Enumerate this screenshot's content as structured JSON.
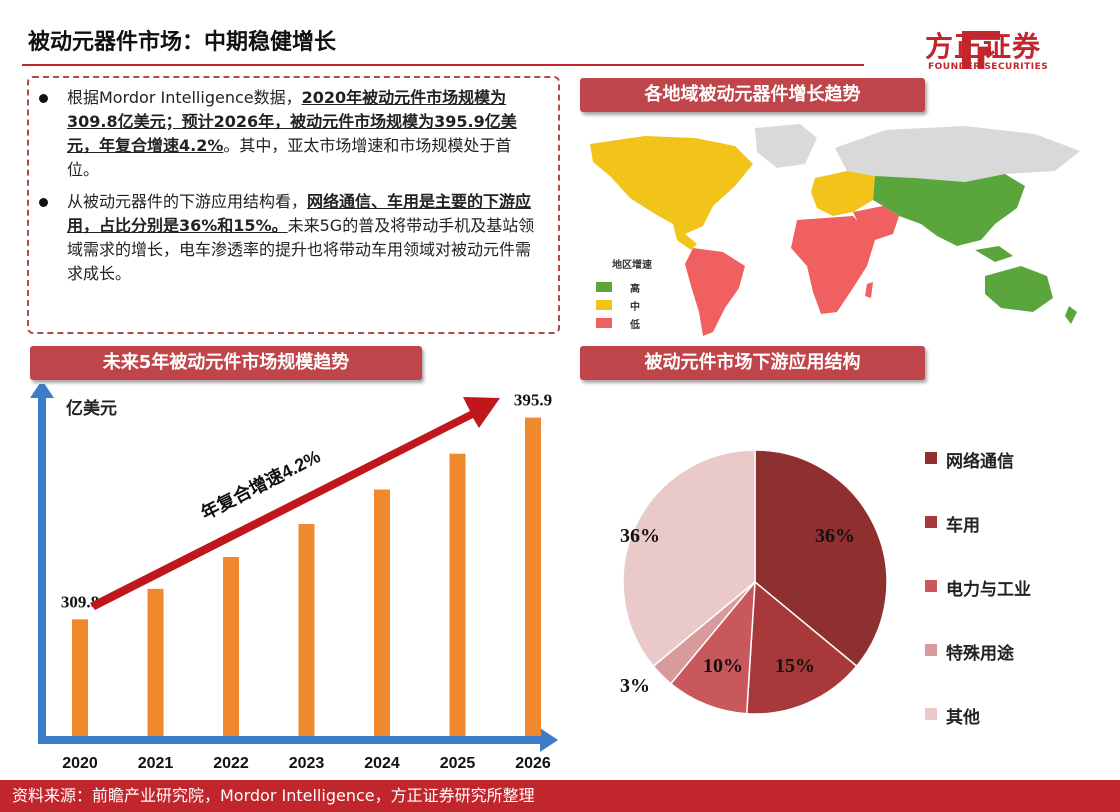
{
  "header": {
    "title": "被动元器件市场：中期稳健增长",
    "logo_text": "方正证券",
    "logo_sub": "FOUNDER SECURITIES"
  },
  "description": {
    "bullet1_part1": "根据Mordor Intelligence数据，",
    "bullet1_bold": "2020年被动元件市场规模为309.8亿美元；预计2026年，被动元件市场规模为395.9亿美元，年复合增速4.2%",
    "bullet1_part2": "。其中，亚太市场增速和市场规模处于首位。",
    "bullet2_part1": "从被动元器件的下游应用结构看，",
    "bullet2_bold": "网络通信、车用是主要的下游应用，占比分别是36%和15%。",
    "bullet2_part2": "未来5G的普及将带动手机及基站领域需求的增长，电车渗透率的提升也将带动车用领域对被动元件需求成长。"
  },
  "map_section": {
    "title": "各地域被动元器件增长趋势",
    "legend_title": "地区增速",
    "legend": [
      {
        "label": "高",
        "color": "#5aa63c"
      },
      {
        "label": "中",
        "color": "#f2c318"
      },
      {
        "label": "低",
        "color": "#f06060"
      }
    ]
  },
  "chart_data": [
    {
      "type": "bar",
      "title": "未来5年被动元件市场规模趋势",
      "ylabel": "亿美元",
      "categories": [
        "2020",
        "2021",
        "2022",
        "2023",
        "2024",
        "2025",
        "2026"
      ],
      "values": [
        309.8,
        322.8,
        336.4,
        350.5,
        365.2,
        380.5,
        395.9
      ],
      "data_labels": {
        "2020": "309.8",
        "2026": "395.9"
      },
      "annotation": "年复合增速4.2%",
      "bar_color": "#f0892e"
    },
    {
      "type": "pie",
      "title": "被动元件市场下游应用结构",
      "slices": [
        {
          "label": "网络通信",
          "value": 36,
          "text": "36%",
          "color": "#8e2f30"
        },
        {
          "label": "车用",
          "value": 15,
          "text": "15%",
          "color": "#a8393b"
        },
        {
          "label": "电力与工业",
          "value": 10,
          "text": "10%",
          "color": "#c9585c"
        },
        {
          "label": "特殊用途",
          "value": 3,
          "text": "3%",
          "color": "#d99a9c"
        },
        {
          "label": "其他",
          "value": 36,
          "text": "36%",
          "color": "#e9c9ca"
        }
      ]
    }
  ],
  "footer": {
    "source": "资料来源：前瞻产业研究院，Mordor Intelligence，方正证券研究所整理"
  }
}
